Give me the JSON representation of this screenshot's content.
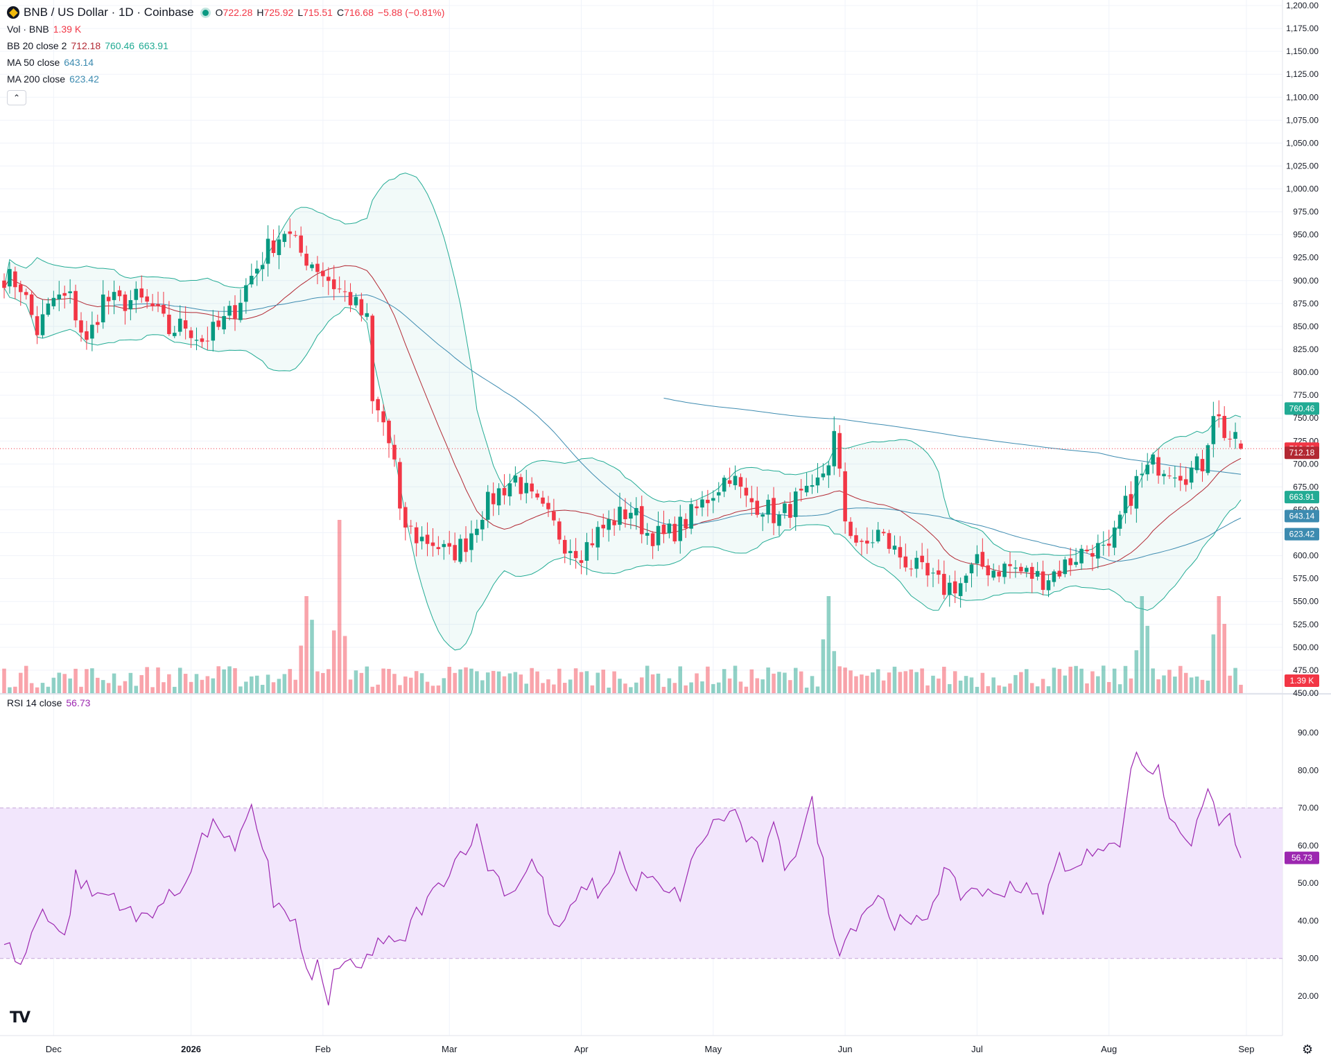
{
  "header": {
    "title": "BNB / US Dollar · 1D · Coinbase",
    "ohlc": {
      "o_label": "O",
      "o": "722.28",
      "h_label": "H",
      "h": "725.92",
      "l_label": "L",
      "l": "715.51",
      "c_label": "C",
      "c": "716.68",
      "chg": "−5.88 (−0.81%)"
    },
    "vol_label": "Vol · BNB",
    "vol_value": "1.39 K",
    "bb_label": "BB 20 close 2",
    "bb_basis": "712.18",
    "bb_upper": "760.46",
    "bb_lower": "663.91",
    "ma50_label": "MA 50 close",
    "ma50_value": "643.14",
    "ma200_label": "MA 200 close",
    "ma200_value": "623.42",
    "collapse_icon": "chevron-up-icon"
  },
  "rsi_legend": {
    "label": "RSI 14 close",
    "value": "56.73"
  },
  "price_axis": {
    "ticks": [
      "1,200.00",
      "1,175.00",
      "1,150.00",
      "1,125.00",
      "1,100.00",
      "1,075.00",
      "1,050.00",
      "1,025.00",
      "1,000.00",
      "975.00",
      "950.00",
      "925.00",
      "900.00",
      "875.00",
      "850.00",
      "825.00",
      "800.00",
      "775.00",
      "750.00",
      "725.00",
      "700.00",
      "675.00",
      "650.00",
      "625.00",
      "600.00",
      "575.00",
      "550.00",
      "525.00",
      "500.00",
      "475.00",
      "450.00"
    ],
    "badges": [
      {
        "text": "760.46",
        "value": 760.46,
        "color": "#22ab94"
      },
      {
        "text": "716.68",
        "value": 716.68,
        "color": "#f23645"
      },
      {
        "text": "712.18",
        "value": 712.18,
        "color": "#b22833"
      },
      {
        "text": "663.91",
        "value": 663.91,
        "color": "#22ab94"
      },
      {
        "text": "643.14",
        "value": 643.14,
        "color": "#3d8bb0"
      },
      {
        "text": "623.42",
        "value": 623.42,
        "color": "#3d8bb0"
      },
      {
        "text": "1.39 K",
        "value": null,
        "color": "#f23645"
      }
    ]
  },
  "rsi_axis": {
    "ticks": [
      "90.00",
      "80.00",
      "70.00",
      "60.00",
      "50.00",
      "40.00",
      "30.00",
      "20.00"
    ],
    "badge": "56.73"
  },
  "time_axis": {
    "labels": [
      {
        "text": "Dec",
        "bold": false
      },
      {
        "text": "2026",
        "bold": true
      },
      {
        "text": "Feb",
        "bold": false
      },
      {
        "text": "Mar",
        "bold": false
      },
      {
        "text": "Apr",
        "bold": false
      },
      {
        "text": "May",
        "bold": false
      },
      {
        "text": "Jun",
        "bold": false
      },
      {
        "text": "Jul",
        "bold": false
      },
      {
        "text": "Aug",
        "bold": false
      },
      {
        "text": "Sep",
        "bold": false
      }
    ]
  },
  "colors": {
    "up": "#089981",
    "down": "#f23645",
    "band": "#22ab94",
    "basis": "#b22833",
    "ma": "#3d8bb0",
    "rsi": "#9c27b0",
    "rsi_fill": "#f2e6fc"
  },
  "logo_text": "TV",
  "settings_icon": "gear-icon",
  "chart_data": {
    "type": "candlestick",
    "symbol": "BNB / US Dollar",
    "interval": "1D",
    "exchange": "Coinbase",
    "y_range": [
      450,
      1200
    ],
    "months": [
      "Dec",
      "2026",
      "Feb",
      "Mar",
      "Apr",
      "May",
      "Jun",
      "Jul",
      "Aug",
      "Sep"
    ],
    "price_path": [
      [
        0,
        905
      ],
      [
        3,
        895
      ],
      [
        6,
        845
      ],
      [
        9,
        880
      ],
      [
        12,
        880
      ],
      [
        15,
        830
      ],
      [
        18,
        880
      ],
      [
        21,
        875
      ],
      [
        24,
        880
      ],
      [
        27,
        870
      ],
      [
        30,
        845
      ],
      [
        33,
        852
      ],
      [
        36,
        835
      ],
      [
        39,
        848
      ],
      [
        42,
        870
      ],
      [
        45,
        905
      ],
      [
        48,
        935
      ],
      [
        51,
        955
      ],
      [
        54,
        930
      ],
      [
        57,
        915
      ],
      [
        60,
        895
      ],
      [
        63,
        880
      ],
      [
        66,
        855
      ],
      [
        67,
        765
      ],
      [
        69,
        745
      ],
      [
        71,
        700
      ],
      [
        72,
        640
      ],
      [
        75,
        620
      ],
      [
        78,
        615
      ],
      [
        81,
        600
      ],
      [
        84,
        615
      ],
      [
        87,
        650
      ],
      [
        90,
        670
      ],
      [
        93,
        685
      ],
      [
        96,
        660
      ],
      [
        99,
        640
      ],
      [
        102,
        615
      ],
      [
        105,
        605
      ],
      [
        108,
        625
      ],
      [
        111,
        640
      ],
      [
        114,
        650
      ],
      [
        117,
        625
      ],
      [
        120,
        620
      ],
      [
        123,
        632
      ],
      [
        126,
        650
      ],
      [
        129,
        670
      ],
      [
        132,
        690
      ],
      [
        135,
        660
      ],
      [
        138,
        655
      ],
      [
        141,
        640
      ],
      [
        144,
        660
      ],
      [
        147,
        665
      ],
      [
        150,
        705
      ],
      [
        151,
        730
      ],
      [
        153,
        640
      ],
      [
        156,
        605
      ],
      [
        159,
        625
      ],
      [
        162,
        605
      ],
      [
        165,
        590
      ],
      [
        168,
        575
      ],
      [
        171,
        565
      ],
      [
        174,
        570
      ],
      [
        177,
        590
      ],
      [
        180,
        585
      ],
      [
        183,
        588
      ],
      [
        186,
        580
      ],
      [
        189,
        575
      ],
      [
        192,
        585
      ],
      [
        195,
        600
      ],
      [
        198,
        610
      ],
      [
        201,
        600
      ],
      [
        202,
        620
      ],
      [
        203,
        640
      ],
      [
        206,
        680
      ],
      [
        209,
        700
      ],
      [
        212,
        698
      ],
      [
        215,
        690
      ],
      [
        218,
        700
      ],
      [
        220,
        760
      ],
      [
        222,
        735
      ],
      [
        224,
        722
      ],
      [
        225,
        716.68
      ]
    ],
    "volume_spikes": [
      {
        "day": 55,
        "value": "high"
      },
      {
        "day": 61,
        "value": "highest"
      },
      {
        "day": 150,
        "value": "high"
      },
      {
        "day": 207,
        "value": "high"
      },
      {
        "day": 221,
        "value": "high"
      }
    ],
    "rsi_path": [
      [
        0,
        35
      ],
      [
        3,
        28
      ],
      [
        7,
        44
      ],
      [
        11,
        35
      ],
      [
        13,
        52
      ],
      [
        16,
        47
      ],
      [
        20,
        47
      ],
      [
        24,
        40
      ],
      [
        28,
        44
      ],
      [
        32,
        48
      ],
      [
        36,
        62
      ],
      [
        39,
        66
      ],
      [
        42,
        58
      ],
      [
        45,
        69
      ],
      [
        48,
        56
      ],
      [
        49,
        45
      ],
      [
        53,
        39
      ],
      [
        55,
        25
      ],
      [
        57,
        28
      ],
      [
        59,
        17
      ],
      [
        60,
        28
      ],
      [
        65,
        27
      ],
      [
        68,
        35
      ],
      [
        72,
        33
      ],
      [
        75,
        42
      ],
      [
        78,
        47
      ],
      [
        82,
        56
      ],
      [
        86,
        64
      ],
      [
        88,
        55
      ],
      [
        92,
        47
      ],
      [
        96,
        56
      ],
      [
        98,
        50
      ],
      [
        100,
        37
      ],
      [
        103,
        42
      ],
      [
        106,
        50
      ],
      [
        109,
        47
      ],
      [
        112,
        58
      ],
      [
        114,
        49
      ],
      [
        117,
        52
      ],
      [
        120,
        47
      ],
      [
        123,
        47
      ],
      [
        127,
        62
      ],
      [
        130,
        67
      ],
      [
        133,
        69
      ],
      [
        135,
        62
      ],
      [
        138,
        57
      ],
      [
        140,
        64
      ],
      [
        142,
        55
      ],
      [
        144,
        59
      ],
      [
        147,
        71
      ],
      [
        149,
        55
      ],
      [
        150,
        42
      ],
      [
        152,
        33
      ],
      [
        156,
        42
      ],
      [
        159,
        47
      ],
      [
        162,
        40
      ],
      [
        165,
        38
      ],
      [
        168,
        42
      ],
      [
        171,
        53
      ],
      [
        174,
        47
      ],
      [
        177,
        49
      ],
      [
        180,
        46
      ],
      [
        183,
        50
      ],
      [
        186,
        48
      ],
      [
        189,
        44
      ],
      [
        192,
        57
      ],
      [
        195,
        53
      ],
      [
        198,
        59
      ],
      [
        201,
        62
      ],
      [
        203,
        58
      ],
      [
        204,
        72
      ],
      [
        206,
        85
      ],
      [
        208,
        80
      ],
      [
        210,
        80
      ],
      [
        212,
        68
      ],
      [
        214,
        65
      ],
      [
        216,
        61
      ],
      [
        218,
        68
      ],
      [
        219,
        77
      ],
      [
        221,
        65
      ],
      [
        223,
        68
      ],
      [
        225,
        56.73
      ]
    ]
  }
}
